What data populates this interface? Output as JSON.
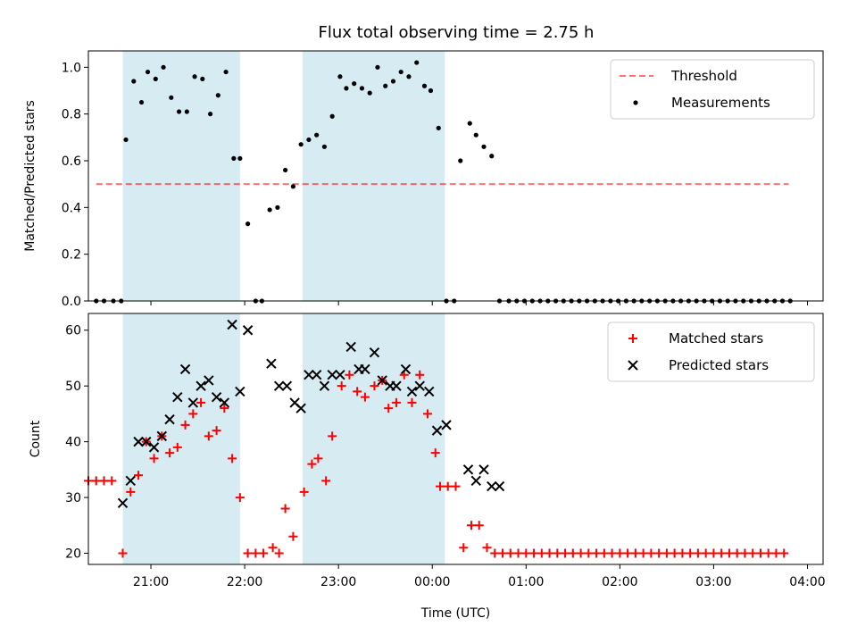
{
  "figure_title": "Flux total observing time = 2.75 h",
  "colors": {
    "shade": "#add8e6",
    "threshold": "#ff0000",
    "measurement": "#000000",
    "matched": "#ff0000",
    "predicted": "#000000"
  },
  "chart_data": [
    {
      "type": "scatter",
      "title": "Flux total observing time = 2.75 h",
      "ylabel": "Matched/Predicted stars",
      "xlabel": "",
      "xlim": [
        "20:20",
        "04:10"
      ],
      "ylim": [
        0,
        1.07
      ],
      "yticks": [
        "0.0",
        "0.2",
        "0.4",
        "0.6",
        "0.8",
        "1.0"
      ],
      "legend_position": "top-right",
      "legend": [
        "Threshold",
        "Measurements"
      ],
      "observing_windows": [
        [
          "20:42",
          "21:57"
        ],
        [
          "22:37",
          "00:08"
        ]
      ],
      "series": [
        {
          "name": "Threshold",
          "style": "dashed-line",
          "x": [
            "20:25",
            "03:48"
          ],
          "y": [
            0.5,
            0.5
          ]
        },
        {
          "name": "Measurements",
          "style": "dot",
          "x": [
            "20:25",
            "20:30",
            "20:36",
            "20:41",
            "20:44",
            "20:49",
            "20:54",
            "20:58",
            "21:03",
            "21:08",
            "21:13",
            "21:18",
            "21:23",
            "21:28",
            "21:33",
            "21:38",
            "21:43",
            "21:48",
            "21:53",
            "21:57",
            "22:02",
            "22:07",
            "22:11",
            "22:16",
            "22:21",
            "22:26",
            "22:31",
            "22:36",
            "22:41",
            "22:46",
            "22:51",
            "22:56",
            "23:01",
            "23:05",
            "23:10",
            "23:15",
            "23:20",
            "23:25",
            "23:30",
            "23:35",
            "23:40",
            "23:45",
            "23:50",
            "23:55",
            "23:59",
            "00:04",
            "00:09",
            "00:14",
            "00:18",
            "00:24",
            "00:28",
            "00:33",
            "00:38",
            "00:43",
            "00:49",
            "00:54",
            "00:59",
            "01:04",
            "01:09",
            "01:14",
            "01:19",
            "01:24",
            "01:29",
            "01:34",
            "01:39",
            "01:44",
            "01:49",
            "01:54",
            "01:59",
            "02:04",
            "02:09",
            "02:14",
            "02:19",
            "02:24",
            "02:29",
            "02:34",
            "02:39",
            "02:44",
            "02:49",
            "02:54",
            "02:59",
            "03:04",
            "03:09",
            "03:14",
            "03:19",
            "03:24",
            "03:29",
            "03:34",
            "03:39",
            "03:44",
            "03:49"
          ],
          "y": [
            0,
            0,
            0,
            0,
            0.69,
            0.94,
            0.85,
            0.98,
            0.95,
            1.0,
            0.87,
            0.81,
            0.81,
            0.96,
            0.95,
            0.8,
            0.88,
            0.98,
            0.61,
            0.61,
            0.33,
            0,
            0,
            0.39,
            0.4,
            0.56,
            0.49,
            0.67,
            0.69,
            0.71,
            0.66,
            0.79,
            0.96,
            0.91,
            0.93,
            0.91,
            0.89,
            1.0,
            0.92,
            0.94,
            0.98,
            0.96,
            1.02,
            0.92,
            0.9,
            0.74,
            0,
            0,
            0.6,
            0.76,
            0.71,
            0.66,
            0.62,
            0,
            0,
            0,
            0,
            0,
            0,
            0,
            0,
            0,
            0,
            0,
            0,
            0,
            0,
            0,
            0,
            0,
            0,
            0,
            0,
            0,
            0,
            0,
            0,
            0,
            0,
            0,
            0,
            0,
            0,
            0,
            0,
            0,
            0,
            0,
            0,
            0,
            0
          ]
        }
      ]
    },
    {
      "type": "scatter",
      "title": "",
      "ylabel": "Count",
      "xlabel": "Time (UTC)",
      "xlim": [
        "20:20",
        "04:10"
      ],
      "ylim": [
        18,
        63
      ],
      "yticks": [
        "20",
        "30",
        "40",
        "50",
        "60"
      ],
      "xticks": [
        "21:00",
        "22:00",
        "23:00",
        "00:00",
        "01:00",
        "02:00",
        "03:00",
        "04:00"
      ],
      "legend_position": "top-right",
      "legend": [
        "Matched stars",
        "Predicted stars"
      ],
      "observing_windows": [
        [
          "20:42",
          "21:57"
        ],
        [
          "22:37",
          "00:08"
        ]
      ],
      "series": [
        {
          "name": "Matched stars",
          "marker": "+",
          "x": [
            "20:20",
            "20:25",
            "20:30",
            "20:35",
            "20:42",
            "20:47",
            "20:52",
            "20:57",
            "21:02",
            "21:07",
            "21:12",
            "21:17",
            "21:22",
            "21:27",
            "21:32",
            "21:37",
            "21:42",
            "21:47",
            "21:52",
            "21:57",
            "22:02",
            "22:07",
            "22:12",
            "22:18",
            "22:22",
            "22:26",
            "22:31",
            "22:38",
            "22:43",
            "22:47",
            "22:52",
            "22:56",
            "23:02",
            "23:07",
            "23:12",
            "23:17",
            "23:23",
            "23:28",
            "23:32",
            "23:37",
            "23:42",
            "23:47",
            "23:52",
            "23:57",
            "00:02",
            "00:05",
            "00:10",
            "00:15",
            "00:20",
            "00:25",
            "00:30",
            "00:35",
            "00:40",
            "00:45",
            "00:50",
            "00:55",
            "01:00",
            "01:05",
            "01:10",
            "01:15",
            "01:20",
            "01:25",
            "01:30",
            "01:35",
            "01:40",
            "01:45",
            "01:50",
            "01:55",
            "02:00",
            "02:05",
            "02:10",
            "02:15",
            "02:20",
            "02:25",
            "02:30",
            "02:35",
            "02:40",
            "02:45",
            "02:50",
            "02:55",
            "03:00",
            "03:05",
            "03:10",
            "03:15",
            "03:20",
            "03:25",
            "03:30",
            "03:35",
            "03:40",
            "03:45"
          ],
          "y": [
            33,
            33,
            33,
            33,
            20,
            31,
            34,
            40,
            37,
            41,
            38,
            39,
            43,
            45,
            47,
            41,
            42,
            46,
            37,
            30,
            20,
            20,
            20,
            21,
            20,
            28,
            23,
            31,
            36,
            37,
            33,
            41,
            50,
            52,
            49,
            48,
            50,
            51,
            46,
            47,
            52,
            47,
            52,
            45,
            38,
            32,
            32,
            32,
            21,
            25,
            25,
            21,
            20,
            20,
            20,
            20,
            20,
            20,
            20,
            20,
            20,
            20,
            20,
            20,
            20,
            20,
            20,
            20,
            20,
            20,
            20,
            20,
            20,
            20,
            20,
            20,
            20,
            20,
            20,
            20,
            20,
            20,
            20,
            20,
            20,
            20,
            20,
            20,
            20,
            20
          ]
        },
        {
          "name": "Predicted stars",
          "marker": "x",
          "x": [
            "20:42",
            "20:47",
            "20:52",
            "20:57",
            "21:02",
            "21:07",
            "21:12",
            "21:17",
            "21:22",
            "21:27",
            "21:32",
            "21:37",
            "21:42",
            "21:47",
            "21:52",
            "21:57",
            "22:02",
            "22:17",
            "22:22",
            "22:27",
            "22:32",
            "22:36",
            "22:41",
            "22:46",
            "22:51",
            "22:56",
            "23:01",
            "23:08",
            "23:13",
            "23:17",
            "23:23",
            "23:28",
            "23:33",
            "23:37",
            "23:43",
            "23:47",
            "23:52",
            "23:58",
            "00:03",
            "00:09",
            "00:23",
            "00:28",
            "00:33",
            "00:38",
            "00:43"
          ],
          "y": [
            29,
            33,
            40,
            40,
            39,
            41,
            44,
            48,
            53,
            47,
            50,
            51,
            48,
            47,
            61,
            49,
            60,
            54,
            50,
            50,
            47,
            46,
            52,
            52,
            50,
            52,
            52,
            57,
            53,
            53,
            56,
            51,
            50,
            50,
            53,
            49,
            50,
            49,
            42,
            43,
            35,
            33,
            35,
            32,
            32
          ]
        }
      ]
    }
  ]
}
